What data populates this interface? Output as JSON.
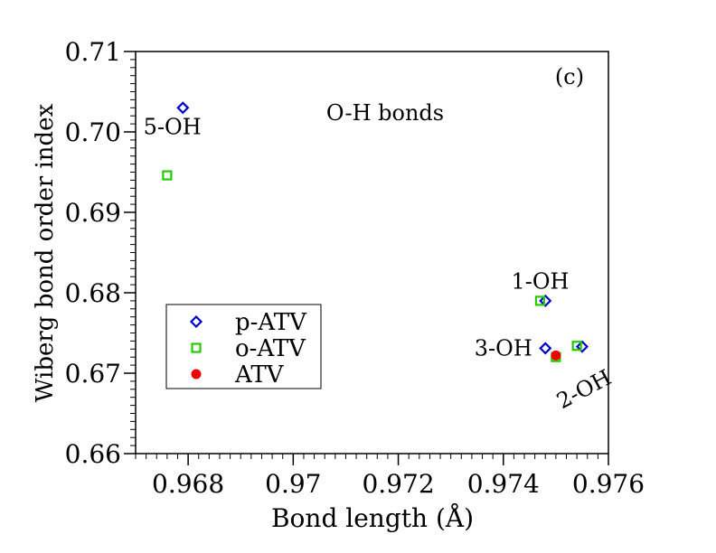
{
  "chart_data": {
    "type": "scatter",
    "panel_label": "(c)",
    "subtitle": "O-H bonds",
    "xlabel": "Bond length (Å)",
    "ylabel": "Wiberg bond order index",
    "xlim": [
      0.967,
      0.976
    ],
    "ylim": [
      0.66,
      0.71
    ],
    "x_ticks": [
      "0.968",
      "0.97",
      "0.972",
      "0.974",
      "0.976"
    ],
    "x_tick_values": [
      0.968,
      0.97,
      0.972,
      0.974,
      0.976
    ],
    "y_ticks": [
      "0.66",
      "0.67",
      "0.68",
      "0.69",
      "0.70",
      "0.71"
    ],
    "y_tick_values": [
      0.66,
      0.67,
      0.68,
      0.69,
      0.7,
      0.71
    ],
    "grid": false,
    "legend_position": "lower-left",
    "series": [
      {
        "name": "p-ATV",
        "marker": "diamond",
        "color": "#0000cc",
        "points": [
          {
            "x": 0.9679,
            "y": 0.703
          },
          {
            "x": 0.9748,
            "y": 0.679
          },
          {
            "x": 0.9748,
            "y": 0.6731
          },
          {
            "x": 0.9755,
            "y": 0.6733
          }
        ]
      },
      {
        "name": "o-ATV",
        "marker": "square",
        "color": "#22cc00",
        "points": [
          {
            "x": 0.9676,
            "y": 0.6946
          },
          {
            "x": 0.9747,
            "y": 0.679
          },
          {
            "x": 0.975,
            "y": 0.672
          },
          {
            "x": 0.9754,
            "y": 0.6734
          }
        ]
      },
      {
        "name": "ATV",
        "marker": "circle",
        "color": "#ee0000",
        "points": [
          {
            "x": 0.975,
            "y": 0.6722
          }
        ]
      }
    ],
    "annotations": [
      {
        "text": "5-OH",
        "x": 0.9677,
        "y": 0.6997,
        "rotate": 0
      },
      {
        "text": "1-OH",
        "x": 0.9747,
        "y": 0.6805,
        "rotate": 0
      },
      {
        "text": "3-OH",
        "x": 0.974,
        "y": 0.6722,
        "rotate": 0
      },
      {
        "text": "2-OH",
        "x": 0.9756,
        "y": 0.6672,
        "rotate": -28
      }
    ]
  }
}
